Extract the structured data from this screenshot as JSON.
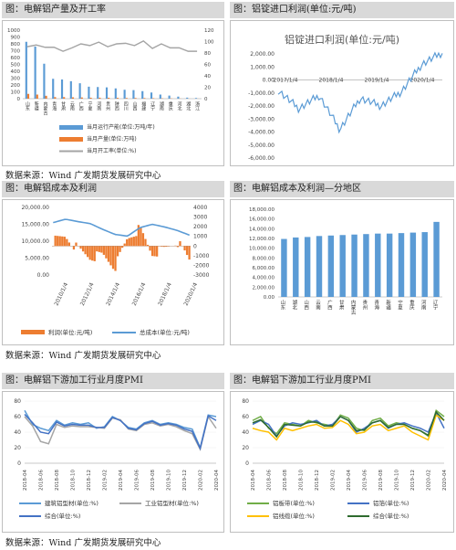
{
  "source_text": "数据来源：Wind  广发期货发展研究中心",
  "colors": {
    "blue": "#5b9bd5",
    "orange": "#ed7d31",
    "gray": "#a5a5a5",
    "yellow": "#ffc000",
    "green": "#70ad47",
    "navy": "#4472c4",
    "dkgreen": "#2e6b2e"
  },
  "chart_data": [
    {
      "id": "c1",
      "type": "bar",
      "title": "图：电解铝产量及开工率",
      "categories": [
        "山东",
        "新疆",
        "内蒙古",
        "青海",
        "甘肃",
        "云南",
        "广西",
        "宁夏",
        "河南",
        "贵州",
        "陕西",
        "四川",
        "山西",
        "福建",
        "辽宁",
        "湖南",
        "重庆",
        "河北",
        "湖北",
        "浙江"
      ],
      "series": [
        {
          "name": "当月运行产能(单位:万吨/年)",
          "type": "bar",
          "axis": "left",
          "values": [
            830,
            760,
            510,
            290,
            280,
            255,
            225,
            175,
            170,
            165,
            150,
            130,
            125,
            110,
            90,
            60,
            45,
            30,
            15,
            10
          ]
        },
        {
          "name": "当月产量(单位:万吨)",
          "type": "bar",
          "axis": "left",
          "values": [
            70,
            60,
            42,
            23,
            23,
            20,
            18,
            14,
            14,
            13,
            12,
            10,
            10,
            9,
            7,
            5,
            4,
            2,
            1,
            1
          ]
        },
        {
          "name": "当月开工率(单位:%)",
          "type": "line",
          "axis": "right",
          "values": [
            91,
            94,
            90,
            90,
            83,
            89,
            96,
            93,
            99,
            91,
            96,
            97,
            93,
            101,
            88,
            96,
            89,
            89,
            83,
            83
          ]
        }
      ],
      "ylim_left": [
        0,
        1000
      ],
      "yticks_left": [
        "0",
        "100",
        "200",
        "300",
        "400",
        "500",
        "600",
        "700",
        "800",
        "900",
        "1000"
      ],
      "ylim_right": [
        0,
        120
      ],
      "yticks_right": [
        "0",
        "20",
        "40",
        "60",
        "80",
        "100",
        "120"
      ]
    },
    {
      "id": "c2",
      "type": "line",
      "title": "图：铝锭进口利润(单位:元/吨)",
      "plot_title": "铝锭进口利润(单位:元/吨)",
      "x": [
        "2017/1/4",
        "2017/6/1",
        "2018/1/4",
        "2018/6/1",
        "2019/1/4",
        "2019/6/1",
        "2020/1/4",
        "2020/4/1",
        "2020/5/20"
      ],
      "series": [
        {
          "name": "铝锭进口利润",
          "values": [
            -800,
            -2200,
            -1200,
            -3800,
            -1400,
            -2000,
            -900,
            1200,
            2100
          ]
        }
      ],
      "xticks": [
        "2017/1/4",
        "2018/1/4",
        "2019/1/4",
        "2020/1/4"
      ],
      "ylim": [
        -6000,
        2000
      ],
      "yticks": [
        "2,000.00",
        "1,000.00",
        "0.00",
        "-1,000.00",
        "-2,000.00",
        "-3,000.00",
        "-4,000.00",
        "-5,000.00",
        "-6,000.00"
      ]
    },
    {
      "id": "c3",
      "type": "bar",
      "title": "图：电解铝成本及利润",
      "x": [
        "2010/1/4",
        "2011/1/4",
        "2012/1/4",
        "2013/1/4",
        "2014/1/4",
        "2015/1/4",
        "2016/1/4",
        "2017/1/4",
        "2018/1/4",
        "2019/1/4",
        "2020/1/4",
        "2020/5/1"
      ],
      "series": [
        {
          "name": "利润(单位:元/吨)",
          "type": "bar",
          "axis": "right",
          "values": [
            500,
            1000,
            -300,
            -1200,
            -900,
            -2200,
            800,
            1800,
            -800,
            -300,
            500,
            -1400
          ]
        },
        {
          "name": "总成本(单位:元/吨)",
          "type": "line",
          "axis": "left",
          "values": [
            15500,
            16500,
            15800,
            15200,
            13500,
            12000,
            11500,
            14000,
            15000,
            14200,
            13200,
            11800
          ]
        }
      ],
      "xticks": [
        "2010/1/4",
        "2012/1/4",
        "2014/1/4",
        "2016/1/4",
        "2018/1/4",
        "2020/1/4"
      ],
      "ylim_left": [
        0,
        20000
      ],
      "yticks_left": [
        "20,000.00",
        "15,000.00",
        "10,000.00",
        "5,000.00",
        "0.00"
      ],
      "ylim_right": [
        -3000,
        4000
      ],
      "yticks_right": [
        "4000",
        "3000",
        "2000",
        "1000",
        "0",
        "-1000",
        "-2000",
        "-3000"
      ]
    },
    {
      "id": "c4",
      "type": "bar",
      "title": "图：电解铝成本及利润—分地区",
      "categories": [
        "山东",
        "湖北",
        "山西",
        "云南",
        "广西",
        "甘肃",
        "内蒙古",
        "贵州",
        "青海",
        "新疆",
        "宁夏",
        "重庆",
        "河南",
        "辽宁"
      ],
      "values": [
        11900,
        12200,
        12300,
        12500,
        12600,
        12700,
        12800,
        12900,
        13000,
        13000,
        13100,
        13200,
        13300,
        15400
      ],
      "ylim": [
        0,
        18000
      ],
      "yticks": [
        "18,000.00",
        "16,000.00",
        "14,000.00",
        "12,000.00",
        "10,000.00",
        "8,000.00",
        "6,000.00",
        "4,000.00",
        "2,000.00",
        "0.00"
      ]
    },
    {
      "id": "c5",
      "type": "line",
      "title": "图：电解铝下游加工行业月度PMI",
      "x": [
        "2018-04",
        "2018-05",
        "2018-06",
        "2018-07",
        "2018-08",
        "2018-09",
        "2018-10",
        "2018-11",
        "2018-12",
        "2019-01",
        "2019-02",
        "2019-03",
        "2019-04",
        "2019-05",
        "2019-06",
        "2019-07",
        "2019-08",
        "2019-09",
        "2019-10",
        "2019-11",
        "2019-12",
        "2020-01",
        "2020-02",
        "2020-03",
        "2020-04"
      ],
      "xticks": [
        "2018-04",
        "2018-06",
        "2018-08",
        "2018-10",
        "2018-12",
        "2019-02",
        "2019-04",
        "2019-06",
        "2019-08",
        "2019-10",
        "2019-12",
        "2020-02",
        "2020-04"
      ],
      "series": [
        {
          "name": "建筑铝型材(单位:%)",
          "values": [
            68,
            50,
            45,
            42,
            55,
            49,
            52,
            50,
            52,
            45,
            47,
            60,
            55,
            46,
            44,
            52,
            55,
            50,
            52,
            50,
            46,
            44,
            20,
            62,
            60
          ]
        },
        {
          "name": "工业铝型材(单位:%)",
          "values": [
            60,
            48,
            28,
            25,
            50,
            46,
            48,
            47,
            47,
            46,
            45,
            58,
            56,
            44,
            42,
            50,
            52,
            48,
            50,
            47,
            42,
            38,
            18,
            60,
            45
          ]
        },
        {
          "name": "综合(单位:%)",
          "values": [
            63,
            52,
            40,
            38,
            53,
            48,
            50,
            49,
            49,
            46,
            46,
            59,
            55,
            45,
            43,
            51,
            54,
            49,
            51,
            49,
            44,
            41,
            19,
            61,
            55
          ]
        }
      ],
      "ylim": [
        0,
        80
      ],
      "yticks": [
        "80",
        "60",
        "40",
        "20",
        "0"
      ]
    },
    {
      "id": "c6",
      "type": "line",
      "title": "图：电解铝下游加工行业月度PMI",
      "x": [
        "2018-04",
        "2018-05",
        "2018-06",
        "2018-07",
        "2018-08",
        "2018-09",
        "2018-10",
        "2018-11",
        "2018-12",
        "2019-01",
        "2019-02",
        "2019-03",
        "2019-04",
        "2019-05",
        "2019-06",
        "2019-07",
        "2019-08",
        "2019-09",
        "2019-10",
        "2019-11",
        "2019-12",
        "2020-01",
        "2020-02",
        "2020-03",
        "2020-04"
      ],
      "xticks": [
        "2018-04",
        "2018-06",
        "2018-08",
        "2018-10",
        "2018-12",
        "2019-02",
        "2019-04",
        "2019-06",
        "2019-08",
        "2019-10",
        "2019-12",
        "2020-02",
        "2020-04"
      ],
      "series": [
        {
          "name": "铝板带(单位:%)",
          "values": [
            55,
            60,
            45,
            38,
            52,
            50,
            48,
            55,
            52,
            50,
            48,
            62,
            58,
            45,
            42,
            55,
            58,
            48,
            52,
            50,
            45,
            42,
            35,
            68,
            60
          ]
        },
        {
          "name": "铝箔(单位:%)",
          "values": [
            50,
            55,
            50,
            35,
            48,
            52,
            50,
            52,
            55,
            48,
            50,
            60,
            55,
            40,
            45,
            52,
            55,
            45,
            50,
            52,
            48,
            45,
            40,
            65,
            45
          ]
        },
        {
          "name": "铝线缆(单位:%)",
          "values": [
            45,
            42,
            40,
            30,
            45,
            42,
            45,
            48,
            50,
            45,
            46,
            55,
            50,
            38,
            40,
            48,
            50,
            42,
            45,
            48,
            40,
            35,
            30,
            62,
            55
          ]
        },
        {
          "name": "综合(单位:%)",
          "values": [
            52,
            56,
            46,
            34,
            50,
            49,
            48,
            53,
            53,
            48,
            48,
            60,
            55,
            42,
            43,
            52,
            55,
            46,
            50,
            50,
            45,
            42,
            36,
            66,
            55
          ]
        }
      ],
      "ylim": [
        0,
        80
      ],
      "yticks": [
        "80",
        "60",
        "40",
        "20",
        "0"
      ]
    }
  ]
}
